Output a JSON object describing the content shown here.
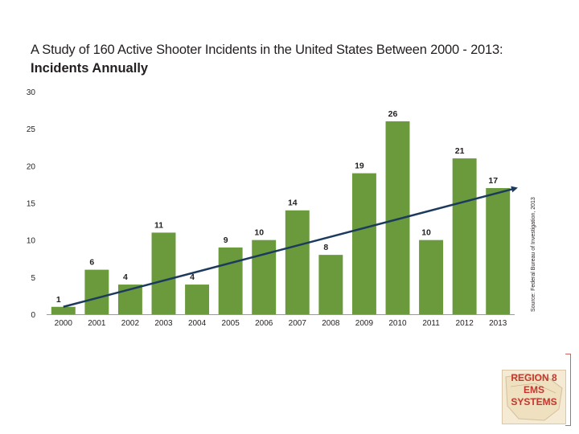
{
  "chart_data": {
    "type": "bar",
    "title": "A Study of 160 Active Shooter Incidents in the United States Between 2000 - 2013:",
    "subtitle": "Incidents Annually",
    "categories": [
      "2000",
      "2001",
      "2002",
      "2003",
      "2004",
      "2005",
      "2006",
      "2007",
      "2008",
      "2009",
      "2010",
      "2011",
      "2012",
      "2013"
    ],
    "values": [
      1,
      6,
      4,
      11,
      4,
      9,
      10,
      14,
      8,
      19,
      26,
      10,
      21,
      17
    ],
    "ylim": [
      0,
      30
    ],
    "yticks": [
      0,
      5,
      10,
      15,
      20,
      25,
      30
    ],
    "xlabel": "",
    "ylabel": "",
    "trendline": {
      "from_value": 1,
      "to_value": 17,
      "arrow": true
    },
    "source": "Source: Federal Bureau of Investigation, 2013",
    "bar_color": "#6a9a3c",
    "trend_color": "#1c3a5e"
  },
  "logo": {
    "line1": "REGION 8",
    "line2": "EMS",
    "line3": "SYSTEMS"
  }
}
